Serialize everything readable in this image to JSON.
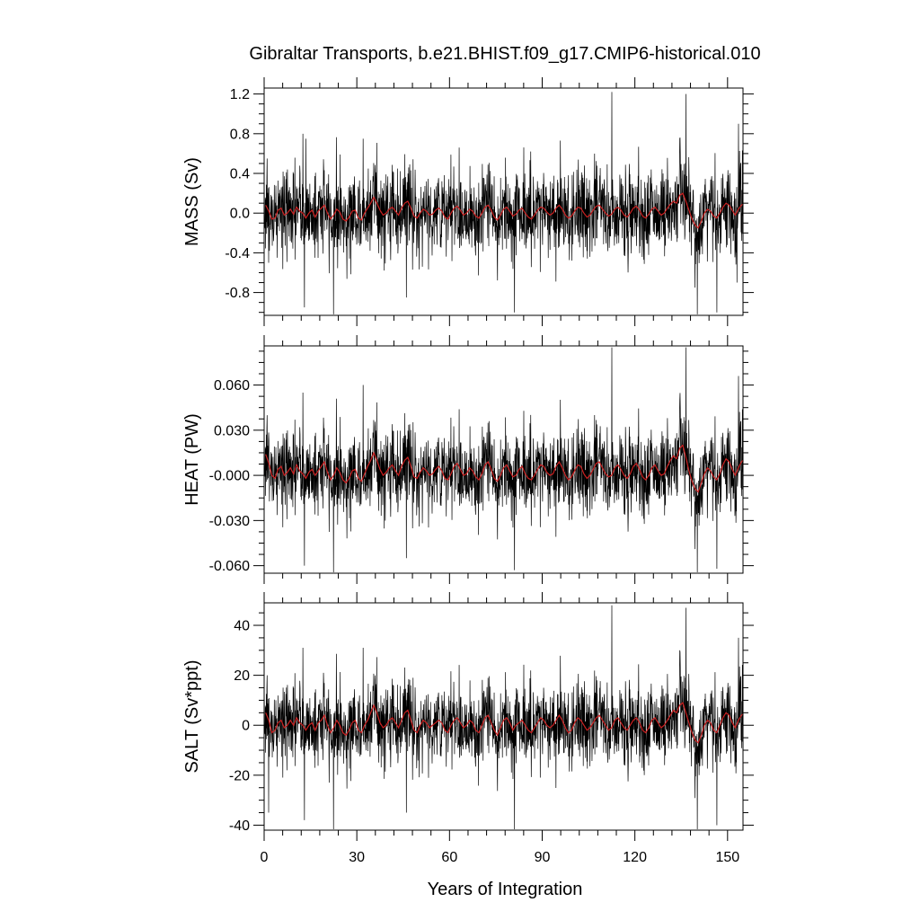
{
  "chart_data": {
    "type": "line",
    "title": "Gibraltar Transports, b.e21.BHIST.f09_g17.CMIP6-historical.010",
    "xlabel": "Years of Integration",
    "xlim": [
      0,
      155
    ],
    "xticks": [
      0,
      30,
      60,
      90,
      120,
      150
    ],
    "xtick_labels": [
      "0",
      "30",
      "60",
      "90",
      "120",
      "150"
    ],
    "colors": {
      "raw": "#000000",
      "smoothed": "#cc2020"
    },
    "panels": [
      {
        "ylabel": "MASS (Sv)",
        "ylim": [
          -1.03,
          1.26
        ],
        "yticks": [
          1.2,
          0.8,
          0.4,
          0.0,
          -0.4,
          -0.8
        ],
        "ytick_labels": [
          "1.2",
          "0.8",
          "0.4",
          "0.0",
          "-0.4",
          "-0.8"
        ],
        "series": [
          {
            "kind": "monthly",
            "noise_amplitude": 0.3,
            "spikes": [
              [
                0.9,
                0.55
              ],
              [
                1.4,
                -0.5
              ],
              [
                12.5,
                0.8
              ],
              [
                13.5,
                0.75
              ],
              [
                13.0,
                -0.95
              ],
              [
                22.4,
                -1.02
              ],
              [
                32.0,
                0.75
              ],
              [
                46.0,
                -0.85
              ],
              [
                81.0,
                -1.0
              ],
              [
                112.5,
                1.22
              ],
              [
                136.5,
                1.2
              ],
              [
                134.5,
                0.75
              ],
              [
                140.2,
                -1.02
              ],
              [
                146.5,
                -1.0
              ],
              [
                153.5,
                0.9
              ],
              [
                153.0,
                -0.7
              ]
            ]
          },
          {
            "kind": "annual-mean",
            "values": [
              0.08,
              0.02,
              -0.06,
              -0.05,
              0.03,
              0.05,
              -0.02,
              0.0,
              0.04,
              -0.01,
              0.06,
              0.02,
              0.0,
              -0.05,
              0.0,
              0.03,
              -0.04,
              0.02,
              0.05,
              0.08,
              0.0,
              -0.06,
              -0.02,
              0.04,
              0.01,
              -0.06,
              -0.08,
              -0.04,
              0.02,
              0.03,
              -0.05,
              -0.07,
              0.0,
              0.05,
              0.1,
              0.16,
              0.1,
              0.03,
              -0.02,
              0.0,
              0.04,
              0.06,
              0.02,
              -0.02,
              0.05,
              0.1,
              0.12,
              0.05,
              -0.03,
              -0.05,
              0.0,
              0.04,
              0.02,
              -0.02,
              -0.01,
              0.03,
              0.05,
              0.02,
              -0.04,
              -0.06,
              0.0,
              0.05,
              0.07,
              0.03,
              -0.02,
              0.0,
              0.04,
              0.02,
              -0.03,
              -0.05,
              0.0,
              0.06,
              0.08,
              0.03,
              -0.04,
              -0.07,
              -0.02,
              0.04,
              0.06,
              0.02,
              -0.03,
              -0.01,
              0.03,
              0.05,
              0.0,
              -0.04,
              -0.06,
              -0.02,
              0.03,
              0.06,
              0.05,
              0.01,
              -0.02,
              0.0,
              0.05,
              0.08,
              0.04,
              -0.02,
              -0.05,
              -0.03,
              0.02,
              0.06,
              0.05,
              0.0,
              -0.04,
              -0.02,
              0.03,
              0.07,
              0.08,
              0.04,
              0.0,
              -0.03,
              -0.01,
              0.04,
              0.06,
              0.03,
              -0.02,
              -0.04,
              0.0,
              0.05,
              0.07,
              0.03,
              -0.03,
              -0.05,
              -0.01,
              0.04,
              0.06,
              0.02,
              -0.02,
              0.0,
              0.05,
              0.09,
              0.12,
              0.1,
              0.18,
              0.2,
              0.12,
              0.03,
              -0.06,
              -0.12,
              -0.15,
              -0.08,
              0.0,
              0.04,
              0.02,
              -0.03,
              -0.05,
              0.0,
              0.06,
              0.1,
              0.08,
              0.03,
              -0.02,
              0.04,
              0.08,
              0.1
            ]
          }
        ]
      },
      {
        "ylabel": "HEAT (PW)",
        "ylim": [
          -0.065,
          0.086
        ],
        "yticks": [
          0.06,
          0.03,
          0.0,
          -0.03,
          -0.06
        ],
        "ytick_labels": [
          "0.060",
          "0.030",
          "-0.000",
          "-0.030",
          "-0.060"
        ],
        "series": [
          {
            "kind": "monthly",
            "noise_amplitude": 0.019,
            "spikes": [
              [
                0.9,
                0.04
              ],
              [
                12.5,
                0.055
              ],
              [
                13.0,
                -0.06
              ],
              [
                22.4,
                -0.065
              ],
              [
                32.0,
                0.06
              ],
              [
                46.0,
                -0.055
              ],
              [
                81.0,
                -0.063
              ],
              [
                112.5,
                0.085
              ],
              [
                136.5,
                0.085
              ],
              [
                134.5,
                0.05
              ],
              [
                140.2,
                -0.065
              ],
              [
                146.5,
                -0.062
              ],
              [
                153.5,
                0.066
              ]
            ]
          },
          {
            "kind": "annual-mean",
            "values": [
              0.014,
              0.008,
              0.0,
              -0.002,
              0.004,
              0.006,
              0.0,
              0.002,
              0.005,
              0.001,
              0.007,
              0.003,
              0.001,
              -0.002,
              0.002,
              0.004,
              0.0,
              0.003,
              0.006,
              0.009,
              0.002,
              -0.003,
              0.0,
              0.005,
              0.002,
              -0.003,
              -0.005,
              -0.002,
              0.003,
              0.004,
              -0.002,
              -0.004,
              0.001,
              0.006,
              0.01,
              0.015,
              0.01,
              0.004,
              0.0,
              0.002,
              0.005,
              0.007,
              0.003,
              0.0,
              0.006,
              0.01,
              0.012,
              0.006,
              -0.001,
              -0.002,
              0.002,
              0.005,
              0.003,
              0.0,
              0.001,
              0.004,
              0.006,
              0.003,
              -0.002,
              -0.003,
              0.001,
              0.006,
              0.008,
              0.004,
              0.0,
              0.001,
              0.005,
              0.003,
              -0.001,
              -0.003,
              0.001,
              0.007,
              0.009,
              0.004,
              -0.002,
              -0.004,
              0.0,
              0.005,
              0.007,
              0.003,
              -0.001,
              0.0,
              0.004,
              0.006,
              0.001,
              -0.002,
              -0.003,
              0.0,
              0.004,
              0.007,
              0.006,
              0.002,
              0.0,
              0.001,
              0.006,
              0.009,
              0.005,
              0.0,
              -0.003,
              -0.001,
              0.003,
              0.007,
              0.006,
              0.001,
              -0.002,
              0.0,
              0.004,
              0.008,
              0.009,
              0.005,
              0.001,
              -0.001,
              0.0,
              0.005,
              0.007,
              0.004,
              0.0,
              -0.002,
              0.001,
              0.006,
              0.008,
              0.004,
              -0.001,
              -0.003,
              0.0,
              0.005,
              0.007,
              0.003,
              0.0,
              0.001,
              0.006,
              0.01,
              0.013,
              0.011,
              0.018,
              0.02,
              0.012,
              0.003,
              -0.004,
              -0.009,
              -0.011,
              -0.005,
              0.001,
              0.005,
              0.003,
              -0.001,
              -0.003,
              0.001,
              0.007,
              0.011,
              0.009,
              0.004,
              0.0,
              0.005,
              0.009,
              0.011
            ]
          }
        ]
      },
      {
        "ylabel": "SALT (Sv*ppt)",
        "ylim": [
          -42,
          49
        ],
        "yticks": [
          40,
          20,
          0,
          -20,
          -40
        ],
        "ytick_labels": [
          "40",
          "20",
          "0",
          "-20",
          "-40"
        ],
        "series": [
          {
            "kind": "monthly",
            "noise_amplitude": 11,
            "spikes": [
              [
                0.9,
                20
              ],
              [
                1.4,
                -35
              ],
              [
                12.5,
                31
              ],
              [
                13.0,
                -38
              ],
              [
                22.4,
                -42
              ],
              [
                32.0,
                31
              ],
              [
                46.0,
                -35
              ],
              [
                81.0,
                -42
              ],
              [
                112.5,
                48
              ],
              [
                136.5,
                47
              ],
              [
                134.5,
                30
              ],
              [
                140.2,
                -42
              ],
              [
                146.5,
                -40
              ],
              [
                153.5,
                35
              ]
            ]
          },
          {
            "kind": "annual-mean",
            "values": [
              5,
              2,
              -3,
              -2,
              1,
              2,
              -1,
              0,
              2,
              0,
              3,
              1,
              0,
              -2,
              0,
              1,
              -2,
              1,
              2,
              4,
              0,
              -3,
              -1,
              2,
              0,
              -3,
              -4,
              -2,
              1,
              2,
              -2,
              -3,
              0,
              2,
              5,
              8,
              5,
              1,
              -1,
              0,
              2,
              3,
              1,
              -1,
              2,
              5,
              6,
              2,
              -2,
              -3,
              0,
              2,
              1,
              -1,
              0,
              1,
              2,
              1,
              -2,
              -3,
              0,
              2,
              3,
              1,
              -1,
              0,
              2,
              1,
              -2,
              -3,
              0,
              3,
              4,
              1,
              -2,
              -4,
              -1,
              2,
              3,
              1,
              -2,
              0,
              1,
              2,
              0,
              -2,
              -3,
              -1,
              1,
              3,
              2,
              0,
              -1,
              0,
              2,
              4,
              2,
              -1,
              -3,
              -2,
              1,
              3,
              2,
              0,
              -2,
              -1,
              1,
              3,
              4,
              2,
              0,
              -2,
              -1,
              2,
              3,
              1,
              -1,
              -2,
              0,
              2,
              3,
              1,
              -2,
              -3,
              -1,
              2,
              3,
              1,
              -1,
              0,
              2,
              4,
              6,
              5,
              8,
              9,
              5,
              1,
              -3,
              -6,
              -7,
              -4,
              0,
              2,
              1,
              -2,
              -3,
              0,
              3,
              5,
              4,
              1,
              -1,
              2,
              4,
              5
            ]
          }
        ]
      }
    ]
  }
}
